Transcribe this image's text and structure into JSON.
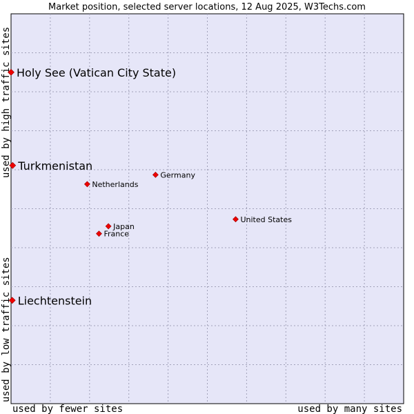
{
  "chart_data": {
    "type": "scatter",
    "title": "Market position, selected server locations, 12 Aug 2025, W3Techs.com",
    "xlabel_low": "used by fewer sites",
    "xlabel_high": "used by many sites",
    "ylabel_low": "used by low traffic sites",
    "ylabel_high": "used by high traffic sites",
    "xlim": [
      0,
      100
    ],
    "ylim": [
      0,
      100
    ],
    "grid": true,
    "colors": {
      "plot_bg": "#e6e6f8",
      "grid": "#a0a0b8",
      "border": "#000000",
      "marker": "#ee0000",
      "marker_edge": "#990000"
    },
    "points": [
      {
        "label": "Holy See (Vatican City State)",
        "x": 0.0,
        "y": 85.0,
        "size": "large"
      },
      {
        "label": "Turkmenistan",
        "x": 0.4,
        "y": 61.1,
        "size": "large"
      },
      {
        "label": "Liechtenstein",
        "x": 0.3,
        "y": 26.5,
        "size": "large"
      },
      {
        "label": "Germany",
        "x": 36.8,
        "y": 58.7,
        "size": "small"
      },
      {
        "label": "Netherlands",
        "x": 19.4,
        "y": 56.3,
        "size": "small"
      },
      {
        "label": "United States",
        "x": 57.2,
        "y": 47.3,
        "size": "small"
      },
      {
        "label": "Japan",
        "x": 24.8,
        "y": 45.5,
        "size": "small"
      },
      {
        "label": "France",
        "x": 22.4,
        "y": 43.6,
        "size": "small"
      }
    ]
  }
}
